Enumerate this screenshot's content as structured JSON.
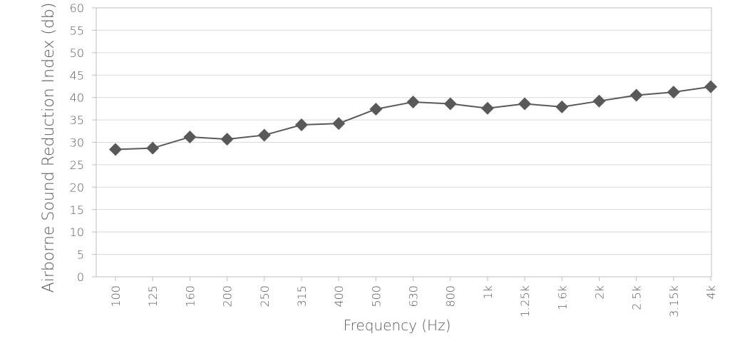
{
  "chart_data": {
    "type": "line",
    "x_label": "Frequency (Hz)",
    "y_label": "Airborne Sound Reduction Index (db)",
    "categories": [
      "100",
      "125",
      "160",
      "200",
      "250",
      "315",
      "400",
      "500",
      "630",
      "800",
      "1k",
      "1.25k",
      "1.6k",
      "2k",
      "2.5k",
      "3.15k",
      "4k"
    ],
    "values": [
      28.4,
      28.7,
      31.2,
      30.7,
      31.6,
      33.9,
      34.2,
      37.4,
      39.0,
      38.6,
      37.6,
      38.6,
      37.9,
      39.2,
      40.5,
      41.2,
      42.4
    ],
    "color": "#595959",
    "ylim": [
      0,
      60
    ],
    "yticks": [
      0,
      5,
      10,
      15,
      20,
      25,
      30,
      35,
      40,
      45,
      50,
      55,
      60
    ],
    "grid": true
  }
}
